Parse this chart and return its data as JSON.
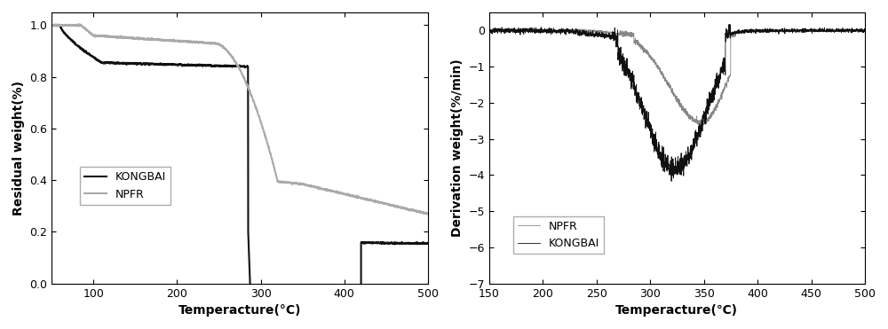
{
  "left": {
    "xlabel": "Temperacture(°C)",
    "ylabel": "Residual weight(%)",
    "xlim": [
      50,
      500
    ],
    "ylim": [
      0.0,
      1.05
    ],
    "yticks": [
      0.0,
      0.2,
      0.4,
      0.6,
      0.8,
      1.0
    ],
    "xticks": [
      100,
      200,
      300,
      400,
      500
    ],
    "legend": [
      "KONGBAI",
      "NPFR"
    ],
    "kongbai_color": "#111111",
    "npfr_color": "#aaaaaa"
  },
  "right": {
    "xlabel": "Temperacture(℃)",
    "ylabel": "Derivation weight(%/min)",
    "xlim": [
      150,
      500
    ],
    "ylim": [
      -7,
      0.5
    ],
    "yticks": [
      0,
      -1,
      -2,
      -3,
      -4,
      -5,
      -6,
      -7
    ],
    "xticks": [
      150,
      200,
      250,
      300,
      350,
      400,
      450,
      500
    ],
    "legend": [
      "KONGBAI",
      "NPFR"
    ],
    "kongbai_color": "#111111",
    "npfr_color": "#888888"
  },
  "background_color": "#ffffff"
}
